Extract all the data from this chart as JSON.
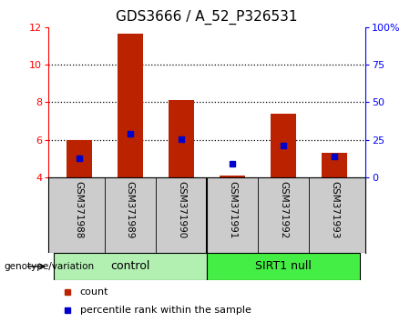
{
  "title": "GDS3666 / A_52_P326531",
  "samples": [
    "GSM371988",
    "GSM371989",
    "GSM371990",
    "GSM371991",
    "GSM371992",
    "GSM371993"
  ],
  "count_values": [
    6.0,
    11.65,
    8.1,
    4.08,
    7.4,
    5.3
  ],
  "percentile_values": [
    5.0,
    6.3,
    6.05,
    4.72,
    5.7,
    5.1
  ],
  "count_base": 4.0,
  "ylim_left": [
    4,
    12
  ],
  "yticks_left": [
    4,
    6,
    8,
    10,
    12
  ],
  "yticks_right": [
    0,
    25,
    50,
    75,
    100
  ],
  "ylim_right": [
    0,
    100
  ],
  "control_color": "#b2f0b2",
  "sirt1_color": "#44ee44",
  "bar_color": "#bb2200",
  "dot_color": "#0000cc",
  "bar_width": 0.5,
  "label_area_color": "#cccccc",
  "title_fontsize": 11,
  "legend_items": [
    "count",
    "percentile rank within the sample"
  ],
  "genotype_label": "genotype/variation"
}
